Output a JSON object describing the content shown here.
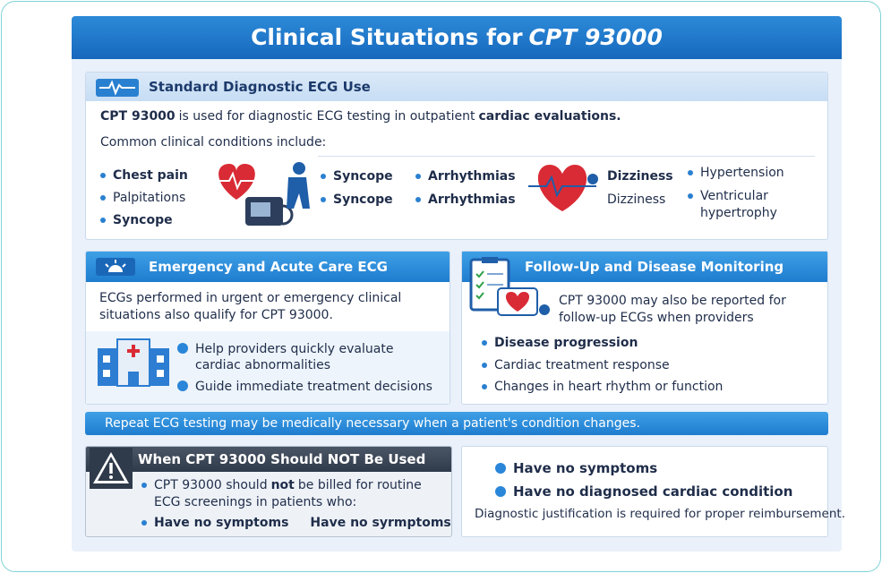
{
  "title": {
    "prefix": "Clinical Situations for",
    "emphasis": "CPT 93000"
  },
  "standard": {
    "heading": "Standard Diagnostic ECG Use",
    "intro": [
      "CPT 93000",
      "is used for diagnostic ECG testing in outpatient",
      "cardiac evaluations."
    ],
    "lead": "Common clinical conditions include:",
    "columns": [
      [
        "Chest pain",
        "Palpitations",
        "Syncope"
      ],
      [
        "Syncope",
        "Syncope"
      ],
      [
        "Arrhythmias",
        "Arrhythmias"
      ],
      [
        "Dizziness",
        "Dizziness"
      ],
      [
        "Hypertension",
        "Ventricular hypertrophy"
      ]
    ]
  },
  "emergency": {
    "heading": "Emergency and Acute Care ECG",
    "text": "ECGs performed in urgent or emergency clinical situations also qualify for CPT 93000.",
    "bullets": [
      "Help providers quickly evaluate cardiac abnormalities",
      "Guide immediate treatment decisions"
    ]
  },
  "followup": {
    "heading": "Follow-Up and Disease Monitoring",
    "text": "CPT 93000 may also be reported for follow-up ECGs when providers",
    "bullets": [
      "Disease progression",
      "Cardiac treatment response",
      "Changes in heart rhythm or function"
    ]
  },
  "banner": "Repeat ECG testing may be medically necessary when a patient's condition changes.",
  "not_used": {
    "heading": "When CPT 93000 Should NOT Be Used",
    "text": [
      "CPT 93000 should",
      "not",
      "be billed for routine ECG screenings in patients who:"
    ],
    "bullets": [
      "Have no symptoms",
      "Have no syrmptoms"
    ]
  },
  "criteria": {
    "bullets": [
      "Have no symptoms",
      "Have no diagnosed cardiac condition"
    ],
    "note": "Diagnostic justification is required for proper reimbursement."
  }
}
